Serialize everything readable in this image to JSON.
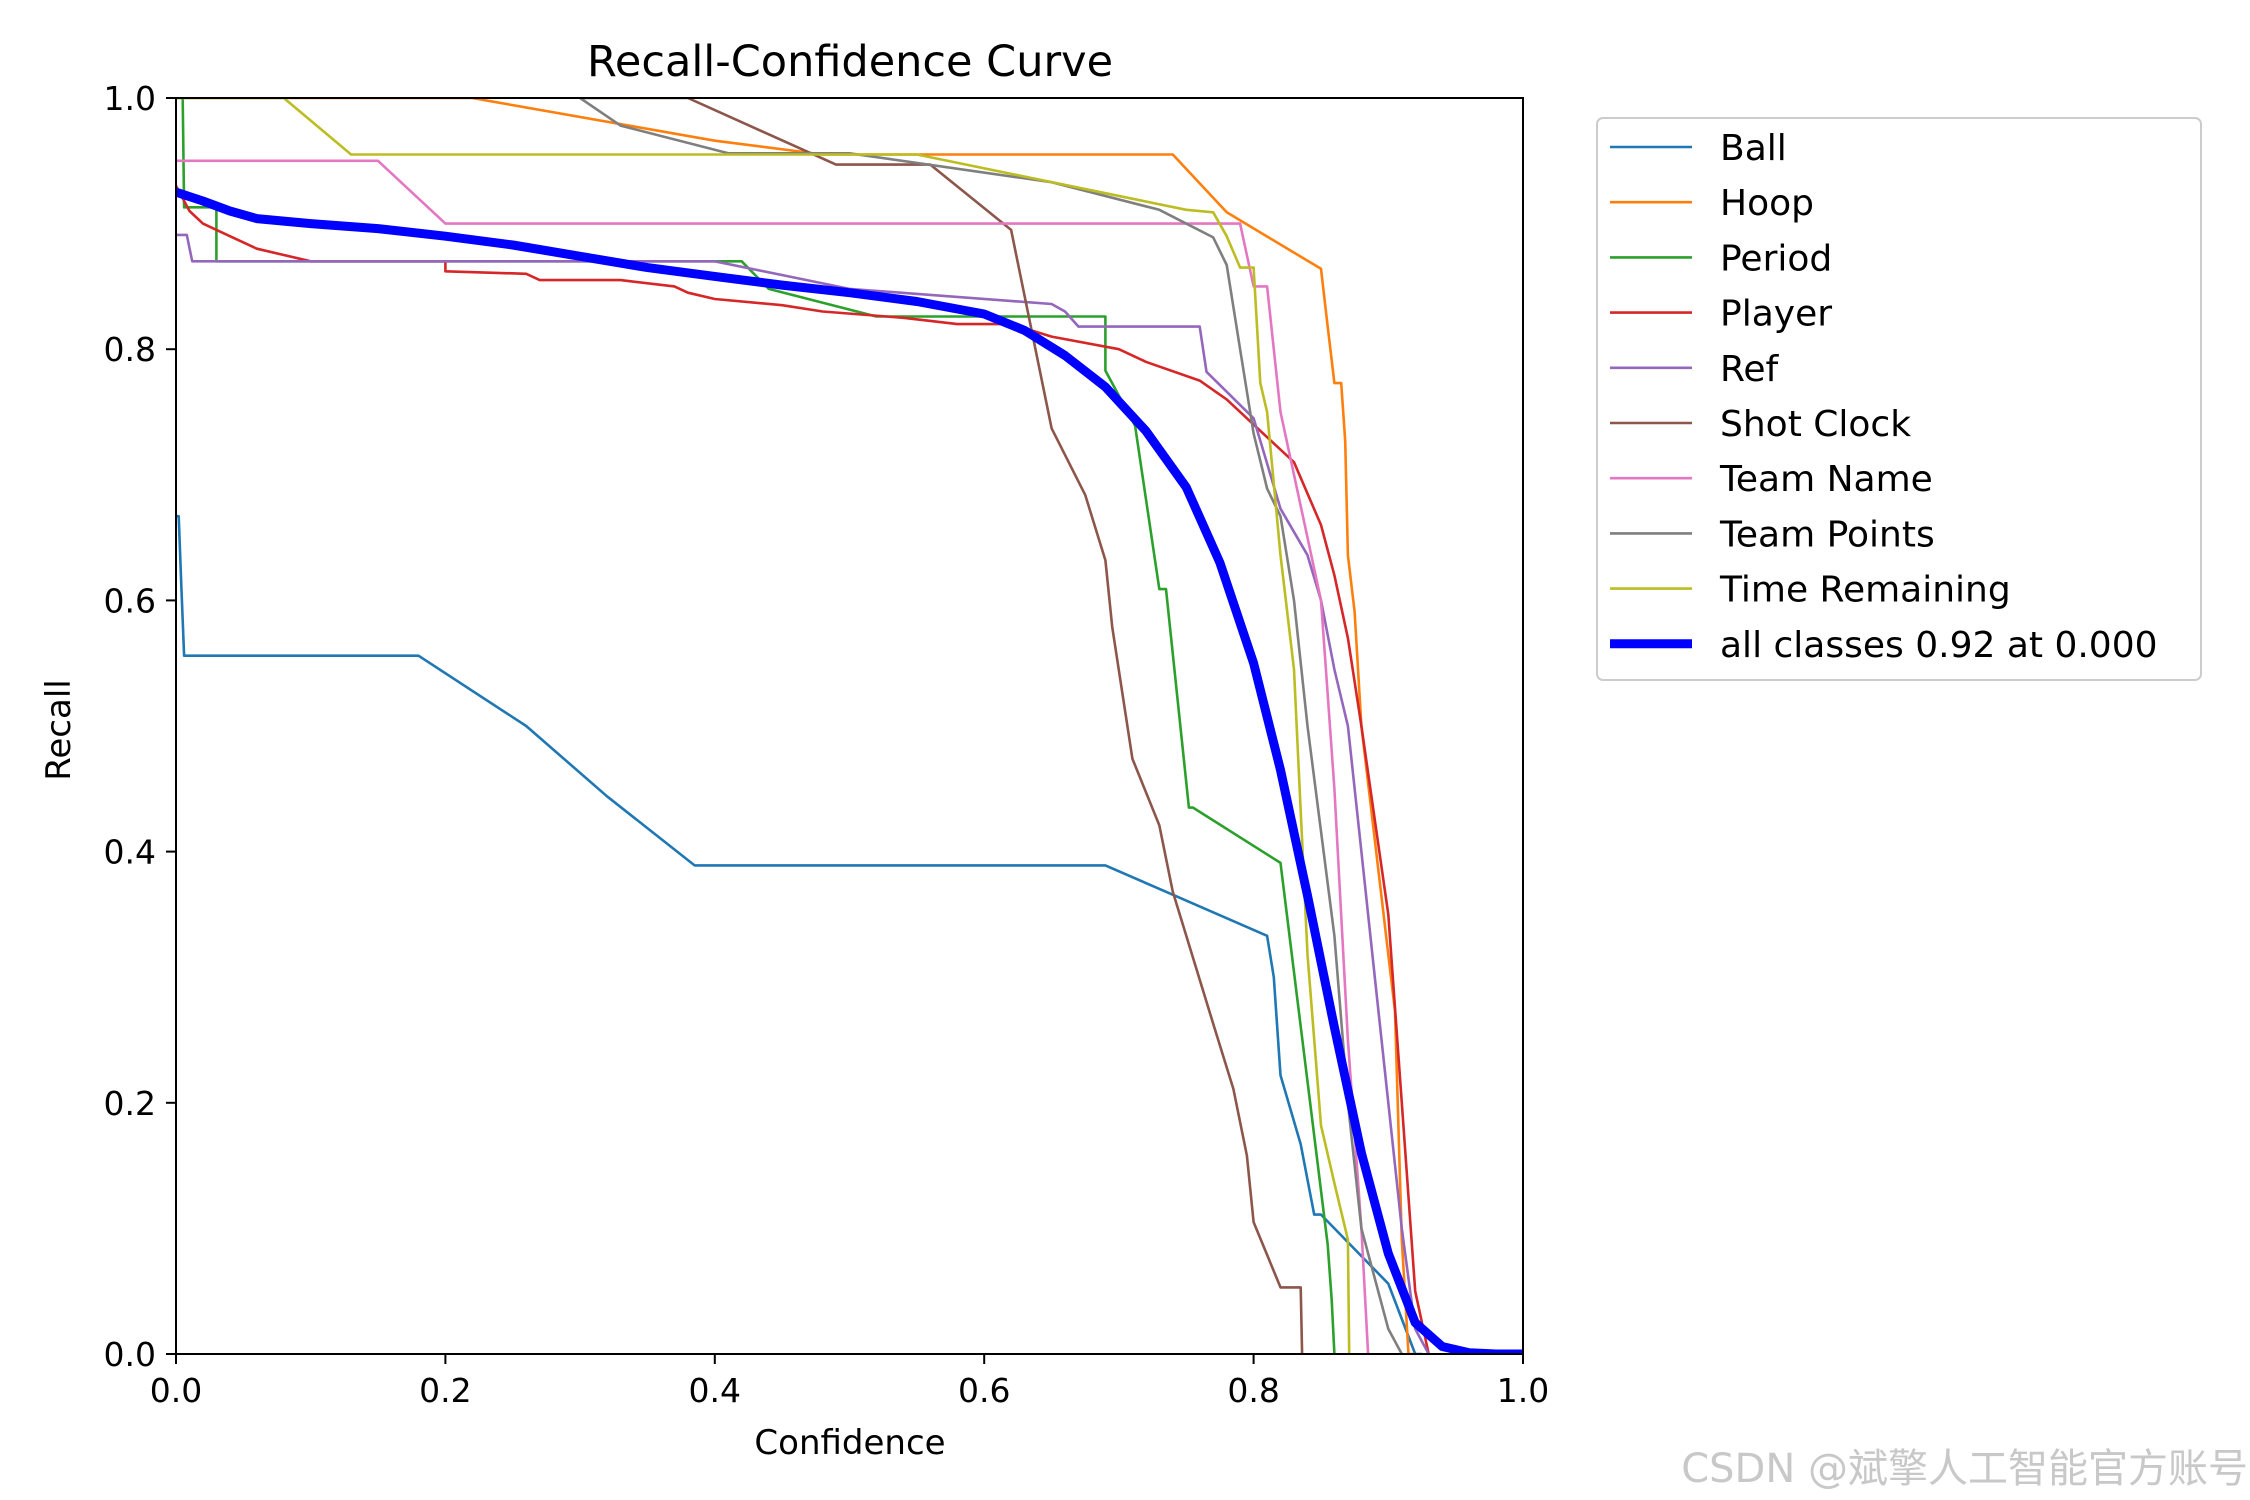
{
  "watermark": "CSDN @斌擎人工智能官方账号",
  "chart_data": {
    "type": "line",
    "title": "Recall-Confidence Curve",
    "xlabel": "Confidence",
    "ylabel": "Recall",
    "xlim": [
      0,
      1
    ],
    "ylim": [
      0,
      1
    ],
    "xticks": [
      "0.0",
      "0.2",
      "0.4",
      "0.6",
      "0.8",
      "1.0"
    ],
    "yticks": [
      "0.0",
      "0.2",
      "0.4",
      "0.6",
      "0.8",
      "1.0"
    ],
    "grid": false,
    "legend_position": "outside-top-right",
    "series": [
      {
        "name": "Ball",
        "color": "#1f77b4",
        "linewidth": "thin",
        "x": [
          0,
          0.002,
          0.004,
          0.004,
          0.006,
          0.18,
          0.26,
          0.32,
          0.385,
          0.69,
          0.81,
          0.815,
          0.82,
          0.835,
          0.845,
          0.85,
          0.9,
          0.92,
          0.925
        ],
        "y": [
          0.667,
          0.667,
          0.61,
          0.61,
          0.556,
          0.556,
          0.5,
          0.444,
          0.389,
          0.389,
          0.333,
          0.3,
          0.222,
          0.167,
          0.111,
          0.111,
          0.056,
          0.0,
          0.0
        ]
      },
      {
        "name": "Hoop",
        "color": "#ff7f0e",
        "linewidth": "thin",
        "x": [
          0,
          0.22,
          0.4,
          0.48,
          0.74,
          0.78,
          0.85,
          0.855,
          0.86,
          0.865,
          0.868,
          0.87,
          0.875,
          0.88,
          0.9,
          0.905,
          0.91,
          0.915,
          0.92
        ],
        "y": [
          1.0,
          1.0,
          0.966,
          0.955,
          0.955,
          0.909,
          0.864,
          0.818,
          0.773,
          0.773,
          0.727,
          0.636,
          0.591,
          0.5,
          0.318,
          0.273,
          0.091,
          0.0,
          0.0
        ]
      },
      {
        "name": "Period",
        "color": "#2ca02c",
        "linewidth": "thin",
        "x": [
          0,
          0.005,
          0.006,
          0.008,
          0.03,
          0.03,
          0.06,
          0.42,
          0.44,
          0.52,
          0.69,
          0.69,
          0.712,
          0.718,
          0.73,
          0.735,
          0.752,
          0.755,
          0.82,
          0.83,
          0.84,
          0.85,
          0.855,
          0.858,
          0.86,
          0.86
        ],
        "y": [
          1.0,
          1.0,
          0.913,
          0.913,
          0.913,
          0.87,
          0.87,
          0.87,
          0.848,
          0.826,
          0.826,
          0.783,
          0.739,
          0.696,
          0.609,
          0.609,
          0.435,
          0.435,
          0.391,
          0.304,
          0.217,
          0.13,
          0.087,
          0.043,
          0.0,
          0.0
        ]
      },
      {
        "name": "Player",
        "color": "#d62728",
        "linewidth": "thin",
        "x": [
          0,
          0.01,
          0.02,
          0.04,
          0.06,
          0.08,
          0.1,
          0.2,
          0.2,
          0.26,
          0.27,
          0.3,
          0.33,
          0.37,
          0.38,
          0.4,
          0.45,
          0.48,
          0.54,
          0.58,
          0.6,
          0.62,
          0.65,
          0.7,
          0.72,
          0.76,
          0.78,
          0.8,
          0.83,
          0.85,
          0.86,
          0.87,
          0.88,
          0.9,
          0.91,
          0.92,
          0.93
        ],
        "y": [
          0.93,
          0.91,
          0.9,
          0.89,
          0.88,
          0.875,
          0.87,
          0.87,
          0.862,
          0.86,
          0.855,
          0.855,
          0.855,
          0.85,
          0.845,
          0.84,
          0.835,
          0.83,
          0.825,
          0.82,
          0.82,
          0.82,
          0.81,
          0.8,
          0.79,
          0.775,
          0.76,
          0.74,
          0.71,
          0.66,
          0.62,
          0.57,
          0.5,
          0.35,
          0.2,
          0.05,
          0.0
        ]
      },
      {
        "name": "Ref",
        "color": "#9467bd",
        "linewidth": "thin",
        "x": [
          0,
          0.008,
          0.012,
          0.1,
          0.4,
          0.5,
          0.65,
          0.66,
          0.67,
          0.76,
          0.765,
          0.8,
          0.81,
          0.82,
          0.84,
          0.85,
          0.86,
          0.87,
          0.88,
          0.89,
          0.9,
          0.91,
          0.92,
          0.93
        ],
        "y": [
          0.891,
          0.891,
          0.87,
          0.87,
          0.87,
          0.848,
          0.836,
          0.83,
          0.818,
          0.818,
          0.782,
          0.745,
          0.709,
          0.673,
          0.636,
          0.6,
          0.545,
          0.5,
          0.4,
          0.3,
          0.2,
          0.1,
          0.02,
          0.0
        ]
      },
      {
        "name": "Shot Clock",
        "color": "#8c564b",
        "linewidth": "thin",
        "x": [
          0.3,
          0.38,
          0.49,
          0.56,
          0.62,
          0.65,
          0.675,
          0.69,
          0.695,
          0.71,
          0.73,
          0.74,
          0.77,
          0.785,
          0.795,
          0.8,
          0.82,
          0.835,
          0.836
        ],
        "y": [
          1.0,
          1.0,
          0.947,
          0.947,
          0.895,
          0.737,
          0.684,
          0.632,
          0.579,
          0.474,
          0.421,
          0.368,
          0.263,
          0.211,
          0.158,
          0.105,
          0.053,
          0.053,
          0.0
        ]
      },
      {
        "name": "Team Name",
        "color": "#e377c2",
        "linewidth": "thin",
        "x": [
          0,
          0.15,
          0.2,
          0.78,
          0.79,
          0.8,
          0.81,
          0.82,
          0.83,
          0.84,
          0.85,
          0.86,
          0.87,
          0.88,
          0.885
        ],
        "y": [
          0.95,
          0.95,
          0.9,
          0.9,
          0.9,
          0.85,
          0.85,
          0.75,
          0.7,
          0.65,
          0.6,
          0.45,
          0.25,
          0.1,
          0.0
        ]
      },
      {
        "name": "Team Points",
        "color": "#7f7f7f",
        "linewidth": "thin",
        "x": [
          0.3,
          0.33,
          0.41,
          0.5,
          0.65,
          0.73,
          0.77,
          0.78,
          0.79,
          0.8,
          0.81,
          0.82,
          0.83,
          0.84,
          0.86,
          0.87,
          0.88,
          0.9,
          0.91
        ],
        "y": [
          1.0,
          0.978,
          0.956,
          0.956,
          0.933,
          0.911,
          0.889,
          0.867,
          0.8,
          0.733,
          0.689,
          0.667,
          0.6,
          0.5,
          0.333,
          0.2,
          0.1,
          0.02,
          0.0
        ]
      },
      {
        "name": "Time Remaining",
        "color": "#bcbd22",
        "linewidth": "thin",
        "x": [
          0,
          0.08,
          0.13,
          0.45,
          0.55,
          0.75,
          0.77,
          0.78,
          0.79,
          0.8,
          0.805,
          0.81,
          0.82,
          0.83,
          0.84,
          0.85,
          0.86,
          0.87,
          0.871
        ],
        "y": [
          1.0,
          1.0,
          0.955,
          0.955,
          0.955,
          0.911,
          0.909,
          0.89,
          0.865,
          0.865,
          0.773,
          0.75,
          0.636,
          0.545,
          0.318,
          0.182,
          0.136,
          0.091,
          0.0
        ]
      },
      {
        "name": "all classes 0.92 at 0.000",
        "color": "#0000ff",
        "linewidth": "thick",
        "x": [
          0,
          0.02,
          0.04,
          0.06,
          0.1,
          0.15,
          0.2,
          0.25,
          0.3,
          0.35,
          0.4,
          0.45,
          0.5,
          0.55,
          0.6,
          0.63,
          0.66,
          0.69,
          0.72,
          0.75,
          0.775,
          0.8,
          0.82,
          0.84,
          0.86,
          0.88,
          0.9,
          0.92,
          0.94,
          0.96,
          0.98,
          1.0
        ],
        "y": [
          0.925,
          0.918,
          0.91,
          0.904,
          0.9,
          0.896,
          0.89,
          0.883,
          0.874,
          0.865,
          0.858,
          0.851,
          0.845,
          0.838,
          0.828,
          0.815,
          0.795,
          0.77,
          0.735,
          0.69,
          0.63,
          0.55,
          0.465,
          0.365,
          0.26,
          0.16,
          0.08,
          0.025,
          0.006,
          0.001,
          0.0,
          0.0
        ]
      }
    ]
  }
}
